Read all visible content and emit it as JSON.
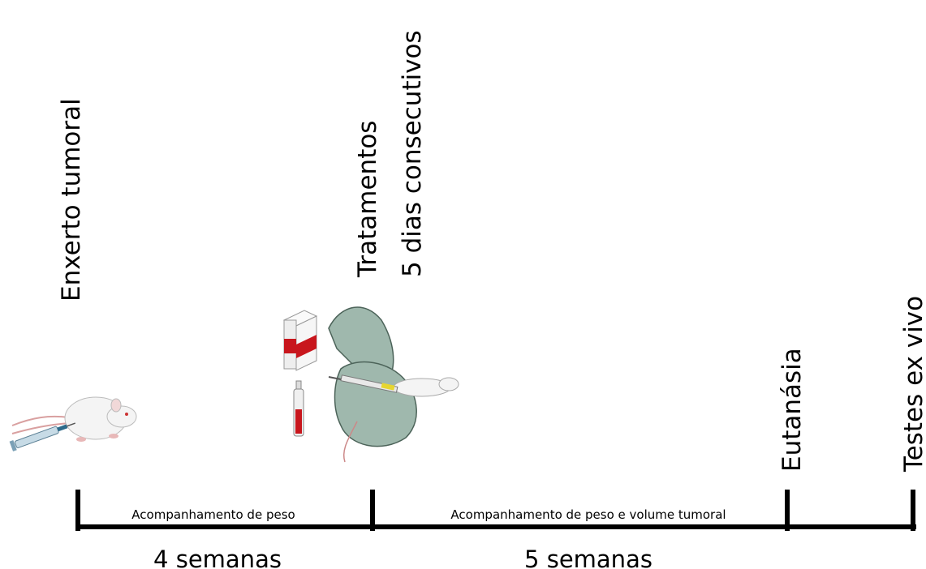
{
  "events": [
    {
      "lines": [
        "Enxerto tumoral"
      ]
    },
    {
      "lines": [
        "Tratamentos",
        "5 dias consecutivos"
      ]
    },
    {
      "lines": [
        "Eutanásia"
      ]
    },
    {
      "lines": [
        "Testes ex vivo"
      ]
    }
  ],
  "periods": [
    {
      "label": "Acompanhamento de peso",
      "duration": "4 semanas"
    },
    {
      "label": "Acompanhamento de peso e volume tumoral",
      "duration": "5 semanas"
    }
  ]
}
